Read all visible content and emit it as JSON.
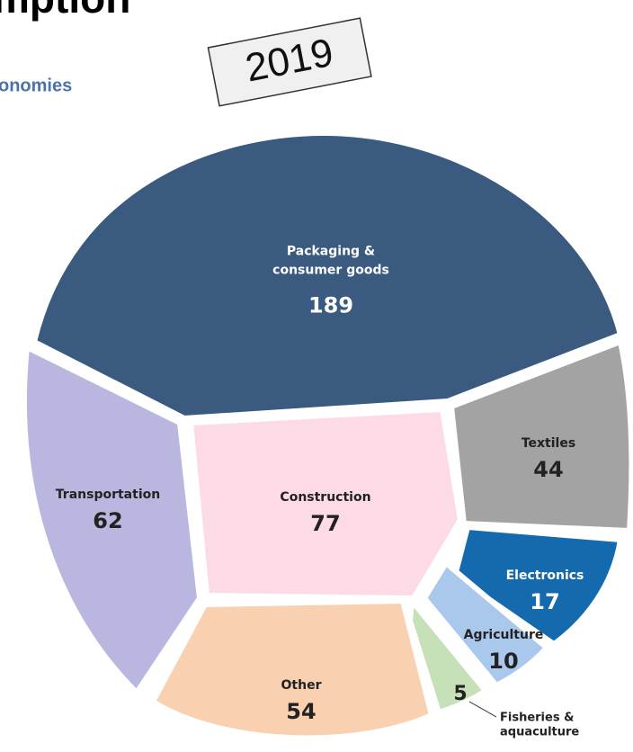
{
  "chart_data": {
    "type": "voronoi-treemap",
    "title": "mption",
    "subtitle": "onomies",
    "annotation": "2019",
    "categories": [
      [
        "Packaging &",
        "consumer goods"
      ],
      [
        "Textiles"
      ],
      [
        "Transportation"
      ],
      [
        "Construction"
      ],
      [
        "Electronics"
      ],
      [
        "Agriculture"
      ],
      [
        "Fisheries &",
        "aquaculture"
      ],
      [
        "Other"
      ]
    ],
    "values": [
      189,
      44,
      62,
      77,
      17,
      10,
      5,
      54
    ],
    "colors": [
      "#3a5a80",
      "#a3a3a3",
      "#b9b7e0",
      "#fcdbe7",
      "#146aad",
      "#a9c8ec",
      "#c6e1b7",
      "#f9d1b0"
    ]
  }
}
